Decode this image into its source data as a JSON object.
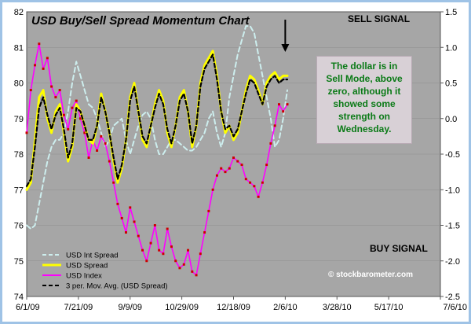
{
  "chart_data": {
    "type": "line",
    "title": "USD Buy/Sell Spread Momentum Chart",
    "x_tick_labels": [
      "6/1/09",
      "7/21/09",
      "9/9/09",
      "10/29/09",
      "12/18/09",
      "2/6/10",
      "3/28/10",
      "5/17/10",
      "7/6/10"
    ],
    "x_range_days": [
      0,
      400
    ],
    "y_left": {
      "ticks": [
        74,
        75,
        76,
        77,
        78,
        79,
        80,
        81,
        82
      ],
      "range": [
        74,
        82
      ]
    },
    "y_right": {
      "ticks": [
        "1.5",
        "1.0",
        "0.5",
        "0.0",
        "-0.5",
        "-1.0",
        "-1.5",
        "-2.0",
        "-2.5"
      ],
      "range": [
        -2.5,
        1.5
      ]
    },
    "series": [
      {
        "name": "USD Int Spread",
        "axis": "right",
        "color": "#cdeeee",
        "style": "dashed",
        "x": [
          0,
          4,
          8,
          12,
          16,
          20,
          24,
          28,
          32,
          36,
          40,
          44,
          48,
          52,
          56,
          60,
          64,
          68,
          72,
          76,
          80,
          84,
          88,
          92,
          96,
          100,
          104,
          108,
          112,
          116,
          120,
          124,
          128,
          132,
          136,
          140,
          144,
          148,
          152,
          156,
          160,
          164,
          168,
          172,
          176,
          180,
          184,
          188,
          192,
          196,
          200,
          204,
          208,
          212,
          216,
          220,
          224,
          228,
          232,
          236,
          240,
          244,
          248,
          252
        ],
        "values": [
          -1.5,
          -1.55,
          -1.5,
          -1.2,
          -0.9,
          -0.6,
          -0.4,
          -0.3,
          -0.3,
          -0.2,
          0.1,
          0.5,
          0.8,
          0.6,
          0.4,
          0.2,
          0.15,
          0.0,
          -0.2,
          -0.4,
          -0.3,
          -0.1,
          -0.05,
          0.0,
          -0.3,
          -0.5,
          -0.3,
          -0.1,
          0.05,
          0.1,
          0.0,
          -0.3,
          -0.5,
          -0.5,
          -0.4,
          -0.3,
          -0.3,
          -0.35,
          -0.4,
          -0.45,
          -0.45,
          -0.4,
          -0.3,
          -0.2,
          0.0,
          0.1,
          -0.2,
          -0.4,
          -0.2,
          0.3,
          0.6,
          0.9,
          1.1,
          1.3,
          1.3,
          1.2,
          0.9,
          0.6,
          0.3,
          0.0,
          -0.4,
          -0.3,
          0.0,
          0.4
        ]
      },
      {
        "name": "USD Spread",
        "axis": "right",
        "color": "#ffff00",
        "style": "solid",
        "x": [
          0,
          4,
          8,
          12,
          16,
          20,
          24,
          28,
          32,
          36,
          40,
          44,
          48,
          52,
          56,
          60,
          64,
          68,
          72,
          76,
          80,
          84,
          88,
          92,
          96,
          100,
          104,
          108,
          112,
          116,
          120,
          124,
          128,
          132,
          136,
          140,
          144,
          148,
          152,
          156,
          160,
          164,
          168,
          172,
          176,
          180,
          184,
          188,
          192,
          196,
          200,
          204,
          208,
          212,
          216,
          220,
          224,
          228,
          232,
          236,
          240,
          244,
          248,
          252
        ],
        "values": [
          -1.0,
          -0.9,
          -0.3,
          0.3,
          0.4,
          0.0,
          -0.2,
          0.1,
          0.2,
          -0.2,
          -0.6,
          -0.4,
          0.2,
          0.1,
          -0.1,
          -0.3,
          -0.35,
          -0.1,
          0.35,
          0.1,
          -0.2,
          -0.6,
          -0.9,
          -0.7,
          -0.3,
          0.3,
          0.5,
          0.1,
          -0.3,
          -0.4,
          -0.1,
          0.2,
          0.4,
          0.25,
          -0.2,
          -0.4,
          -0.1,
          0.3,
          0.4,
          0.1,
          -0.4,
          -0.1,
          0.5,
          0.75,
          0.85,
          0.95,
          0.6,
          0.1,
          -0.2,
          -0.1,
          -0.3,
          -0.2,
          0.1,
          0.4,
          0.6,
          0.55,
          0.4,
          0.2,
          0.5,
          0.6,
          0.65,
          0.55,
          0.6,
          0.6
        ]
      },
      {
        "name": "USD Index",
        "axis": "left",
        "color": "#ff00ff",
        "style": "solid",
        "x": [
          0,
          4,
          8,
          12,
          16,
          20,
          24,
          28,
          32,
          36,
          40,
          44,
          48,
          52,
          56,
          60,
          64,
          68,
          72,
          76,
          80,
          84,
          88,
          92,
          96,
          100,
          104,
          108,
          112,
          116,
          120,
          124,
          128,
          132,
          136,
          140,
          144,
          148,
          152,
          156,
          160,
          164,
          168,
          172,
          176,
          180,
          184,
          188,
          192,
          196,
          200,
          204,
          208,
          212,
          216,
          220,
          224,
          228,
          232,
          236,
          240,
          244,
          248,
          252
        ],
        "values": [
          78.6,
          79.8,
          80.5,
          81.1,
          80.4,
          80.7,
          79.9,
          79.6,
          79.8,
          79.1,
          78.7,
          79.3,
          79.5,
          79.0,
          78.6,
          77.9,
          78.4,
          78.1,
          78.5,
          78.3,
          77.8,
          77.2,
          76.6,
          76.2,
          75.8,
          76.5,
          76.1,
          75.7,
          75.3,
          75.0,
          75.5,
          76.0,
          75.3,
          75.2,
          75.9,
          75.4,
          75.0,
          74.8,
          74.9,
          75.3,
          74.7,
          74.6,
          75.2,
          75.8,
          76.4,
          77.0,
          77.4,
          77.6,
          77.5,
          77.6,
          77.9,
          77.8,
          77.7,
          77.3,
          77.2,
          77.1,
          76.8,
          77.2,
          77.7,
          78.3,
          78.8,
          79.4,
          79.2,
          79.4
        ]
      },
      {
        "name": "3 per. Mov. Avg. (USD Spread)",
        "axis": "right",
        "color": "#000000",
        "style": "dashed",
        "x": [
          0,
          4,
          8,
          12,
          16,
          20,
          24,
          28,
          32,
          36,
          40,
          44,
          48,
          52,
          56,
          60,
          64,
          68,
          72,
          76,
          80,
          84,
          88,
          92,
          96,
          100,
          104,
          108,
          112,
          116,
          120,
          124,
          128,
          132,
          136,
          140,
          144,
          148,
          152,
          156,
          160,
          164,
          168,
          172,
          176,
          180,
          184,
          188,
          192,
          196,
          200,
          204,
          208,
          212,
          216,
          220,
          224,
          228,
          232,
          236,
          240,
          244,
          248,
          252
        ],
        "values": [
          -0.95,
          -0.85,
          -0.4,
          0.15,
          0.3,
          0.05,
          -0.15,
          0.05,
          0.15,
          -0.15,
          -0.55,
          -0.35,
          0.15,
          0.1,
          -0.1,
          -0.3,
          -0.3,
          -0.1,
          0.3,
          0.1,
          -0.2,
          -0.55,
          -0.85,
          -0.65,
          -0.3,
          0.25,
          0.45,
          0.1,
          -0.25,
          -0.35,
          -0.1,
          0.15,
          0.35,
          0.2,
          -0.15,
          -0.35,
          -0.1,
          0.25,
          0.35,
          0.1,
          -0.35,
          -0.1,
          0.45,
          0.7,
          0.8,
          0.9,
          0.55,
          0.1,
          -0.15,
          -0.1,
          -0.25,
          -0.15,
          0.1,
          0.35,
          0.55,
          0.5,
          0.35,
          0.2,
          0.45,
          0.55,
          0.6,
          0.5,
          0.55,
          0.55
        ]
      }
    ],
    "arrow_at_x": 250,
    "annotations": {
      "sell_signal": "SELL SIGNAL",
      "buy_signal": "BUY SIGNAL",
      "note": "The dollar is in Sell Mode, above zero, although it showed some strength on Wednesday.",
      "watermark": "© stockbarometer.com"
    }
  }
}
